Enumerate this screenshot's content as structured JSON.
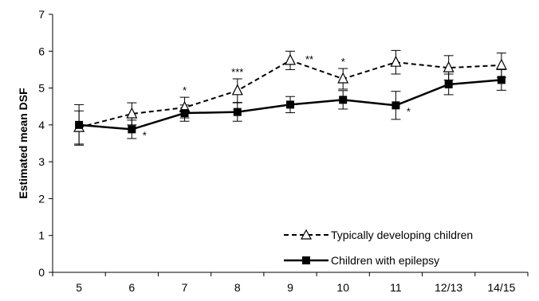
{
  "chart_data": {
    "type": "line",
    "title": "",
    "xlabel": "",
    "ylabel": "Estimated mean DSF",
    "categories": [
      "5",
      "6",
      "7",
      "8",
      "9",
      "10",
      "11",
      "12/13",
      "14/15"
    ],
    "ylim": [
      0,
      7
    ],
    "yticks": [
      "0",
      "1",
      "2",
      "3",
      "4",
      "5",
      "6",
      "7"
    ],
    "grid": false,
    "legend_position": "bottom-right",
    "series": [
      {
        "name": "Typically developing children",
        "style": "dashed",
        "marker": "open-triangle",
        "color": "#000000",
        "values": [
          3.93,
          4.3,
          4.47,
          4.93,
          5.75,
          5.25,
          5.7,
          5.55,
          5.62
        ],
        "error": [
          0.45,
          0.3,
          0.28,
          0.32,
          0.25,
          0.28,
          0.32,
          0.33,
          0.33
        ]
      },
      {
        "name": "Children with epilepsy",
        "style": "solid",
        "marker": "filled-square",
        "color": "#000000",
        "values": [
          4.0,
          3.88,
          4.32,
          4.35,
          4.55,
          4.68,
          4.53,
          5.1,
          5.22
        ],
        "error": [
          0.55,
          0.25,
          0.22,
          0.25,
          0.22,
          0.25,
          0.38,
          0.28,
          0.28
        ]
      }
    ],
    "annotations": [
      {
        "text": "*",
        "category": "6",
        "anchor": "Children with epilepsy"
      },
      {
        "text": "*",
        "category": "7",
        "anchor": "Typically developing children"
      },
      {
        "text": "***",
        "category": "8",
        "anchor": "Typically developing children"
      },
      {
        "text": "**",
        "category": "9",
        "anchor": "Typically developing children"
      },
      {
        "text": "*",
        "category": "10",
        "anchor": "Typically developing children"
      },
      {
        "text": "*",
        "category": "11",
        "anchor": "Children with epilepsy"
      }
    ]
  }
}
